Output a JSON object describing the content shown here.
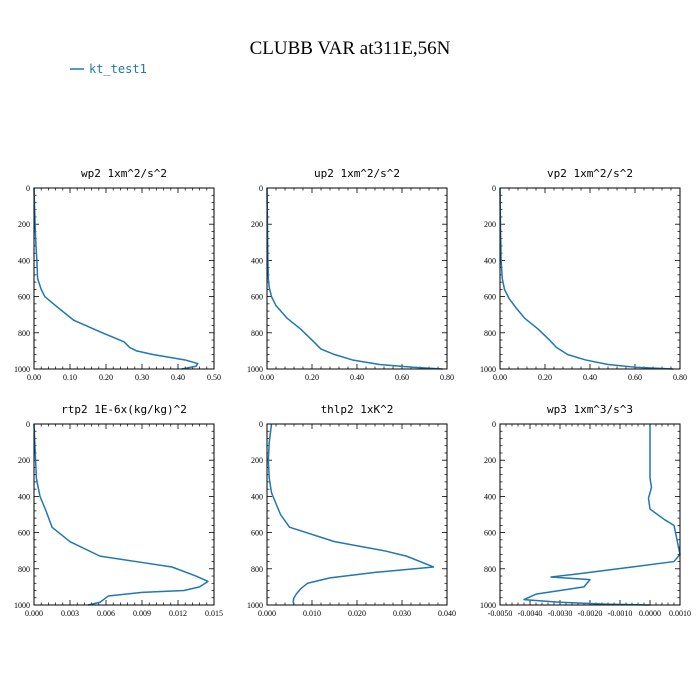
{
  "figure": {
    "title": "CLUBB VAR at311E,56N",
    "legend": [
      {
        "label": "kt_test1",
        "color": "#1f77b4"
      }
    ]
  },
  "chart_data": [
    {
      "type": "line",
      "title": "wp2  1xm^2/s^2",
      "xlim": [
        0.0,
        0.5
      ],
      "ylim": [
        1000,
        0
      ],
      "xticks": [
        0.0,
        0.1,
        0.2,
        0.3,
        0.4,
        0.5
      ],
      "xtick_labels": [
        "0.00",
        "0.10",
        "0.20",
        "0.30",
        "0.40",
        "0.50"
      ],
      "yticks": [
        0,
        200,
        400,
        600,
        800,
        1000
      ],
      "ytick_labels": [
        "0",
        "200",
        "400",
        "600",
        "800",
        "1000"
      ],
      "series": [
        {
          "name": "kt_test1",
          "x": [
            0.0,
            0.003,
            0.005,
            0.008,
            0.01,
            0.02,
            0.03,
            0.06,
            0.11,
            0.19,
            0.25,
            0.265,
            0.285,
            0.33,
            0.42,
            0.455,
            0.45,
            0.41
          ],
          "y": [
            0,
            200,
            300,
            400,
            500,
            560,
            600,
            650,
            730,
            800,
            850,
            880,
            900,
            920,
            950,
            970,
            985,
            1000
          ]
        }
      ]
    },
    {
      "type": "line",
      "title": "up2  1xm^2/s^2",
      "xlim": [
        0.0,
        0.8
      ],
      "ylim": [
        1000,
        0
      ],
      "xticks": [
        0.0,
        0.2,
        0.4,
        0.6,
        0.8
      ],
      "xtick_labels": [
        "0.00",
        "0.20",
        "0.40",
        "0.60",
        "0.80"
      ],
      "yticks": [
        0,
        200,
        400,
        600,
        800,
        1000
      ],
      "ytick_labels": [
        "0",
        "200",
        "400",
        "600",
        "800",
        "1000"
      ],
      "series": [
        {
          "name": "kt_test1",
          "x": [
            0.0,
            0.002,
            0.004,
            0.006,
            0.01,
            0.02,
            0.04,
            0.09,
            0.15,
            0.2,
            0.24,
            0.3,
            0.38,
            0.5,
            0.65,
            0.78
          ],
          "y": [
            0,
            200,
            400,
            500,
            550,
            600,
            650,
            720,
            780,
            840,
            890,
            920,
            950,
            975,
            990,
            1000
          ]
        }
      ]
    },
    {
      "type": "line",
      "title": "vp2  1xm^2/s^2",
      "xlim": [
        0.0,
        0.8
      ],
      "ylim": [
        1000,
        0
      ],
      "xticks": [
        0.0,
        0.2,
        0.4,
        0.6,
        0.8
      ],
      "xtick_labels": [
        "0.00",
        "0.20",
        "0.40",
        "0.60",
        "0.80"
      ],
      "yticks": [
        0,
        200,
        400,
        600,
        800,
        1000
      ],
      "ytick_labels": [
        "0",
        "200",
        "400",
        "600",
        "800",
        "1000"
      ],
      "series": [
        {
          "name": "kt_test1",
          "x": [
            0.0,
            0.002,
            0.005,
            0.01,
            0.02,
            0.04,
            0.07,
            0.11,
            0.17,
            0.22,
            0.25,
            0.3,
            0.38,
            0.48,
            0.6,
            0.77
          ],
          "y": [
            0,
            200,
            400,
            500,
            560,
            610,
            660,
            720,
            780,
            840,
            880,
            920,
            950,
            975,
            990,
            1000
          ]
        }
      ]
    },
    {
      "type": "line",
      "title": "rtp2  1E-6x(kg/kg)^2",
      "xlim": [
        0.0,
        0.015
      ],
      "ylim": [
        1000,
        0
      ],
      "xticks": [
        0.0,
        0.003,
        0.006,
        0.009,
        0.012,
        0.015
      ],
      "xtick_labels": [
        "0.000",
        "0.003",
        "0.006",
        "0.009",
        "0.012",
        "0.015"
      ],
      "yticks": [
        0,
        200,
        400,
        600,
        800,
        1000
      ],
      "ytick_labels": [
        "0",
        "200",
        "400",
        "600",
        "800",
        "1000"
      ],
      "series": [
        {
          "name": "kt_test1",
          "x": [
            0.0,
            0.0002,
            0.0005,
            0.001,
            0.0015,
            0.003,
            0.0055,
            0.0085,
            0.0115,
            0.0135,
            0.0145,
            0.0138,
            0.0125,
            0.009,
            0.0062,
            0.0058,
            0.0055,
            0.0045
          ],
          "y": [
            0,
            300,
            400,
            480,
            570,
            650,
            730,
            760,
            790,
            840,
            870,
            900,
            920,
            930,
            950,
            970,
            985,
            1000
          ]
        }
      ]
    },
    {
      "type": "line",
      "title": "thlp2  1xK^2",
      "xlim": [
        0.0,
        0.04
      ],
      "ylim": [
        1000,
        0
      ],
      "xticks": [
        0.0,
        0.01,
        0.02,
        0.03,
        0.04
      ],
      "xtick_labels": [
        "0.000",
        "0.010",
        "0.020",
        "0.030",
        "0.040"
      ],
      "yticks": [
        0,
        200,
        400,
        600,
        800,
        1000
      ],
      "ytick_labels": [
        "0",
        "200",
        "400",
        "600",
        "800",
        "1000"
      ],
      "series": [
        {
          "name": "kt_test1",
          "x": [
            0.001,
            0.0005,
            0.0003,
            0.0005,
            0.001,
            0.002,
            0.003,
            0.005,
            0.015,
            0.026,
            0.031,
            0.037,
            0.024,
            0.014,
            0.009,
            0.0075,
            0.0065,
            0.006,
            0.0058,
            0.006
          ],
          "y": [
            0,
            100,
            200,
            300,
            380,
            440,
            500,
            570,
            650,
            700,
            730,
            790,
            820,
            850,
            880,
            910,
            940,
            960,
            980,
            1000
          ]
        }
      ]
    },
    {
      "type": "line",
      "title": "wp3  1xm^3/s^3",
      "xlim": [
        -0.005,
        0.001
      ],
      "ylim": [
        1000,
        0
      ],
      "xticks": [
        -0.005,
        -0.004,
        -0.003,
        -0.002,
        -0.001,
        0.0,
        0.001
      ],
      "xtick_labels": [
        "-0.0050",
        "-0.0040",
        "-0.0030",
        "-0.0020",
        "-0.0010",
        "0.0000",
        "0.0010"
      ],
      "yticks": [
        0,
        200,
        400,
        600,
        800,
        1000
      ],
      "ytick_labels": [
        "0",
        "200",
        "400",
        "600",
        "800",
        "1000"
      ],
      "series": [
        {
          "name": "kt_test1",
          "x": [
            0.0,
            0.0,
            0.0,
            5e-05,
            -5e-05,
            0.0,
            0.0005,
            0.0008,
            0.001,
            0.0008,
            -0.0006,
            -0.0025,
            -0.0033,
            -0.002,
            -0.0022,
            -0.0038,
            -0.0042,
            -0.003,
            -0.0015,
            0.0
          ],
          "y": [
            0,
            200,
            300,
            350,
            410,
            470,
            530,
            560,
            720,
            760,
            790,
            830,
            845,
            860,
            900,
            940,
            970,
            985,
            995,
            1000
          ]
        }
      ]
    }
  ]
}
